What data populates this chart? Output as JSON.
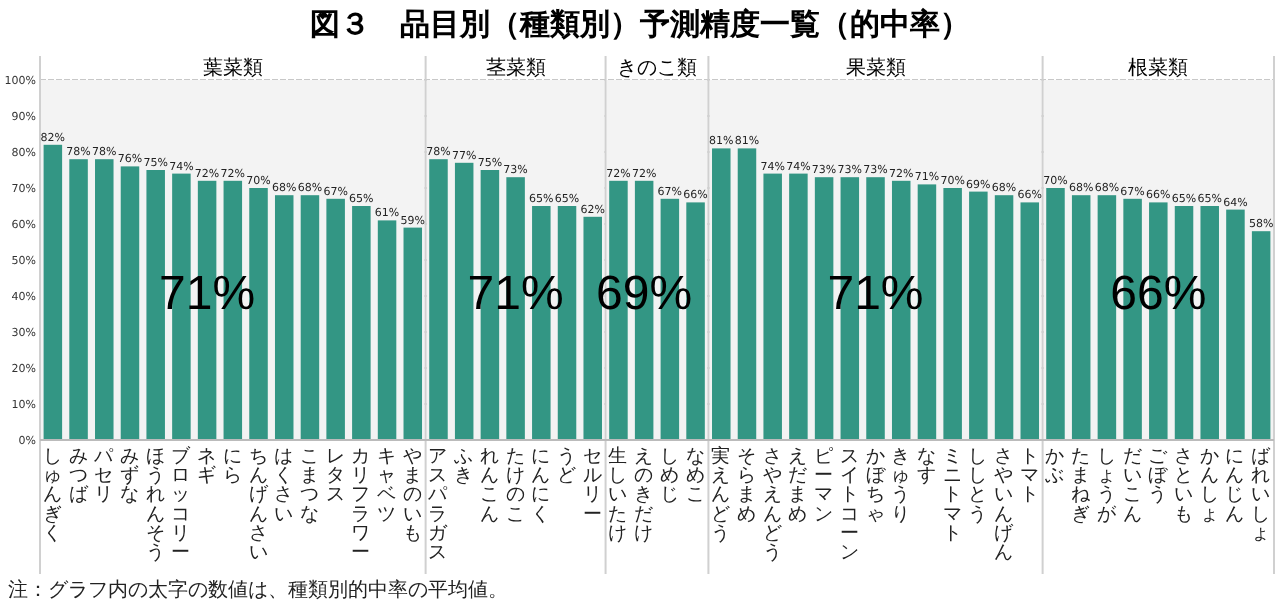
{
  "chart_data": {
    "type": "bar",
    "title": "図３　品目別（種類別）予測精度一覧（的中率）",
    "categories": [
      "しゅんぎく",
      "みつば",
      "パセリ",
      "みずな",
      "ほうれんそう",
      "ブロッコリー",
      "ネギ",
      "にら",
      "ちんげんさい",
      "はくさい",
      "こまつな",
      "レタス",
      "カリフラワー",
      "キャベツ",
      "やまのいも",
      "アスパラガス",
      "ふき",
      "れんこん",
      "たけのこ",
      "にんにく",
      "うど",
      "セルリー",
      "生しいたけ",
      "えのきだけ",
      "しめじ",
      "なめこ",
      "実えんどう",
      "そらまめ",
      "さやえんどう",
      "えだまめ",
      "ピーマン",
      "スイトコーン",
      "かぼちゃ",
      "きゅうり",
      "なす",
      "ミニトマト",
      "ししとう",
      "さやいんげん",
      "トマト",
      "かぶ",
      "たまねぎ",
      "しょうが",
      "だいこん",
      "ごぼう",
      "さといも",
      "かんしょ",
      "にんじん",
      "ばれいしょ"
    ],
    "values": [
      82,
      78,
      78,
      76,
      75,
      74,
      72,
      72,
      70,
      68,
      68,
      67,
      65,
      61,
      59,
      78,
      77,
      75,
      73,
      65,
      65,
      62,
      72,
      72,
      67,
      66,
      81,
      81,
      74,
      74,
      73,
      73,
      73,
      72,
      71,
      70,
      69,
      68,
      66,
      70,
      68,
      68,
      67,
      66,
      65,
      65,
      64,
      58
    ],
    "value_labels": [
      "82%",
      "78%",
      "78%",
      "76%",
      "75%",
      "74%",
      "72%",
      "72%",
      "70%",
      "68%",
      "68%",
      "67%",
      "65%",
      "61%",
      "59%",
      "78%",
      "77%",
      "75%",
      "73%",
      "65%",
      "65%",
      "62%",
      "72%",
      "72%",
      "67%",
      "66%",
      "81%",
      "81%",
      "74%",
      "74%",
      "73%",
      "73%",
      "73%",
      "72%",
      "71%",
      "70%",
      "69%",
      "68%",
      "66%",
      "70%",
      "68%",
      "68%",
      "67%",
      "66%",
      "65%",
      "65%",
      "64%",
      "58%"
    ],
    "color": "#339684",
    "ylim": [
      0,
      100
    ],
    "yticks": [
      {
        "value": 0,
        "label": "0%"
      },
      {
        "value": 10,
        "label": "10%"
      },
      {
        "value": 20,
        "label": "20%"
      },
      {
        "value": 30,
        "label": "30%"
      },
      {
        "value": 40,
        "label": "40%"
      },
      {
        "value": 50,
        "label": "50%"
      },
      {
        "value": 60,
        "label": "60%"
      },
      {
        "value": 70,
        "label": "70%"
      },
      {
        "value": 80,
        "label": "80%"
      },
      {
        "value": 90,
        "label": "90%"
      },
      {
        "value": 100,
        "label": "100%"
      }
    ],
    "grid": "y",
    "bands": [
      {
        "axis": "x",
        "from": "しゅんぎく",
        "to": "やまのいも",
        "label": "葉菜類",
        "color": "#f3f3f3"
      },
      {
        "axis": "x",
        "from": "アスパラガス",
        "to": "セルリー",
        "label": "茎菜類",
        "color": "#f3f3f3"
      },
      {
        "axis": "x",
        "from": "生しいたけ",
        "to": "なめこ",
        "label": "きのこ類",
        "color": "#f3f3f3"
      },
      {
        "axis": "x",
        "from": "実えんどう",
        "to": "トマト",
        "label": "果菜類",
        "color": "#f3f3f3"
      },
      {
        "axis": "x",
        "from": "かぶ",
        "to": "ばれいしょ",
        "label": "根菜類",
        "color": "#f3f3f3"
      }
    ],
    "annotations": [
      {
        "text": "71%",
        "x": "ネギ",
        "y": 40
      },
      {
        "text": "71%",
        "x": "たけのこ",
        "y": 40
      },
      {
        "text": "69%",
        "x": "えのきだけ",
        "y": 40
      },
      {
        "text": "71%",
        "x": "かぼちゃ",
        "y": 40
      },
      {
        "text": "66%",
        "x": "ごぼう",
        "y": 40
      },
      "注：グラフ内の太字の数値は、種類別的中率の平均値。"
    ]
  }
}
